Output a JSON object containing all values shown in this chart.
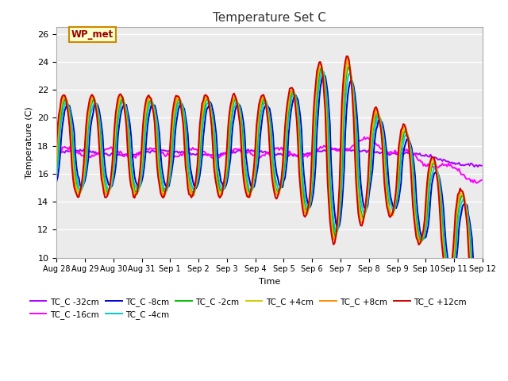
{
  "title": "Temperature Set C",
  "ylabel": "Temperature (C)",
  "xlabel": "Time",
  "ylim": [
    10,
    26.5
  ],
  "yticks": [
    10,
    12,
    14,
    16,
    18,
    20,
    22,
    24,
    26
  ],
  "bg_color": "#ebebeb",
  "fig_color": "#ffffff",
  "annotation_text": "WP_met",
  "annotation_bg": "#ffffcc",
  "annotation_border": "#cc8800",
  "annotation_text_color": "#990000",
  "series": [
    {
      "label": "TC_C -32cm",
      "color": "#aa00ff",
      "lw": 1.4
    },
    {
      "label": "TC_C -16cm",
      "color": "#ff00ff",
      "lw": 1.4
    },
    {
      "label": "TC_C -8cm",
      "color": "#0000cc",
      "lw": 1.4
    },
    {
      "label": "TC_C -4cm",
      "color": "#00cccc",
      "lw": 1.4
    },
    {
      "label": "TC_C -2cm",
      "color": "#00bb00",
      "lw": 1.4
    },
    {
      "label": "TC_C +4cm",
      "color": "#cccc00",
      "lw": 1.4
    },
    {
      "label": "TC_C +8cm",
      "color": "#ff8800",
      "lw": 1.4
    },
    {
      "label": "TC_C +12cm",
      "color": "#cc0000",
      "lw": 1.4
    }
  ],
  "xtick_labels": [
    "Aug 28",
    "Aug 29",
    "Aug 30",
    "Aug 31",
    "Sep 1",
    "Sep 2",
    "Sep 3",
    "Sep 4",
    "Sep 5",
    "Sep 6",
    "Sep 7",
    "Sep 8",
    "Sep 9",
    "Sep 10",
    "Sep 11",
    "Sep 12"
  ],
  "n_days": 15,
  "pts_per_day": 24
}
